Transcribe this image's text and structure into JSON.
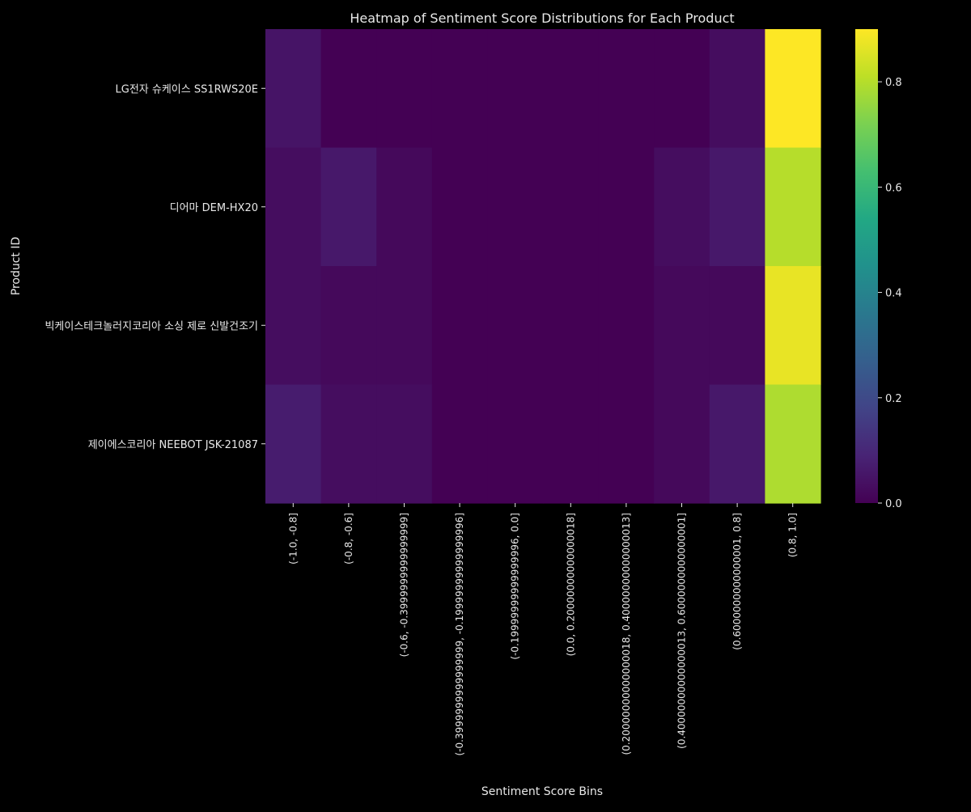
{
  "chart_data": {
    "type": "heatmap",
    "title": "Heatmap of Sentiment Score Distributions for Each Product",
    "xlabel": "Sentiment Score Bins",
    "ylabel": "Product ID",
    "x_categories": [
      "(-1.0, -0.8]",
      "(-0.8, -0.6]",
      "(-0.6, -0.3999999999999999]",
      "(-0.3999999999999999, -0.19999999999999996]",
      "(-0.19999999999999996, 0.0]",
      "(0.0, 0.20000000000000018]",
      "(0.20000000000000018, 0.40000000000000013]",
      "(0.40000000000000013, 0.6000000000000001]",
      "(0.6000000000000001, 0.8]",
      "(0.8, 1.0]"
    ],
    "y_categories": [
      "LG전자 슈케이스 SS1RWS20E",
      "디어마 DEM-HX20",
      "빅케이스테크놀러지코리아 소싱 제로 신발건조기",
      "제이에스코리아 NEEBOT JSK-21087"
    ],
    "values": [
      [
        0.05,
        0.0,
        0.0,
        0.0,
        0.0,
        0.0,
        0.0,
        0.0,
        0.03,
        0.9
      ],
      [
        0.03,
        0.06,
        0.02,
        0.0,
        0.0,
        0.0,
        0.0,
        0.03,
        0.06,
        0.8
      ],
      [
        0.03,
        0.02,
        0.02,
        0.0,
        0.0,
        0.0,
        0.0,
        0.02,
        0.02,
        0.87
      ],
      [
        0.07,
        0.03,
        0.03,
        0.0,
        0.0,
        0.0,
        0.0,
        0.02,
        0.06,
        0.79
      ]
    ],
    "colorbar": {
      "colormap": "viridis",
      "vmin": 0.0,
      "vmax": 0.9,
      "ticks": [
        0.0,
        0.2,
        0.4,
        0.6,
        0.8
      ],
      "tick_labels": [
        "0.0",
        "0.2",
        "0.4",
        "0.6",
        "0.8"
      ]
    },
    "theme": {
      "background": "#000000",
      "text_color": "#e8e8e8"
    }
  }
}
